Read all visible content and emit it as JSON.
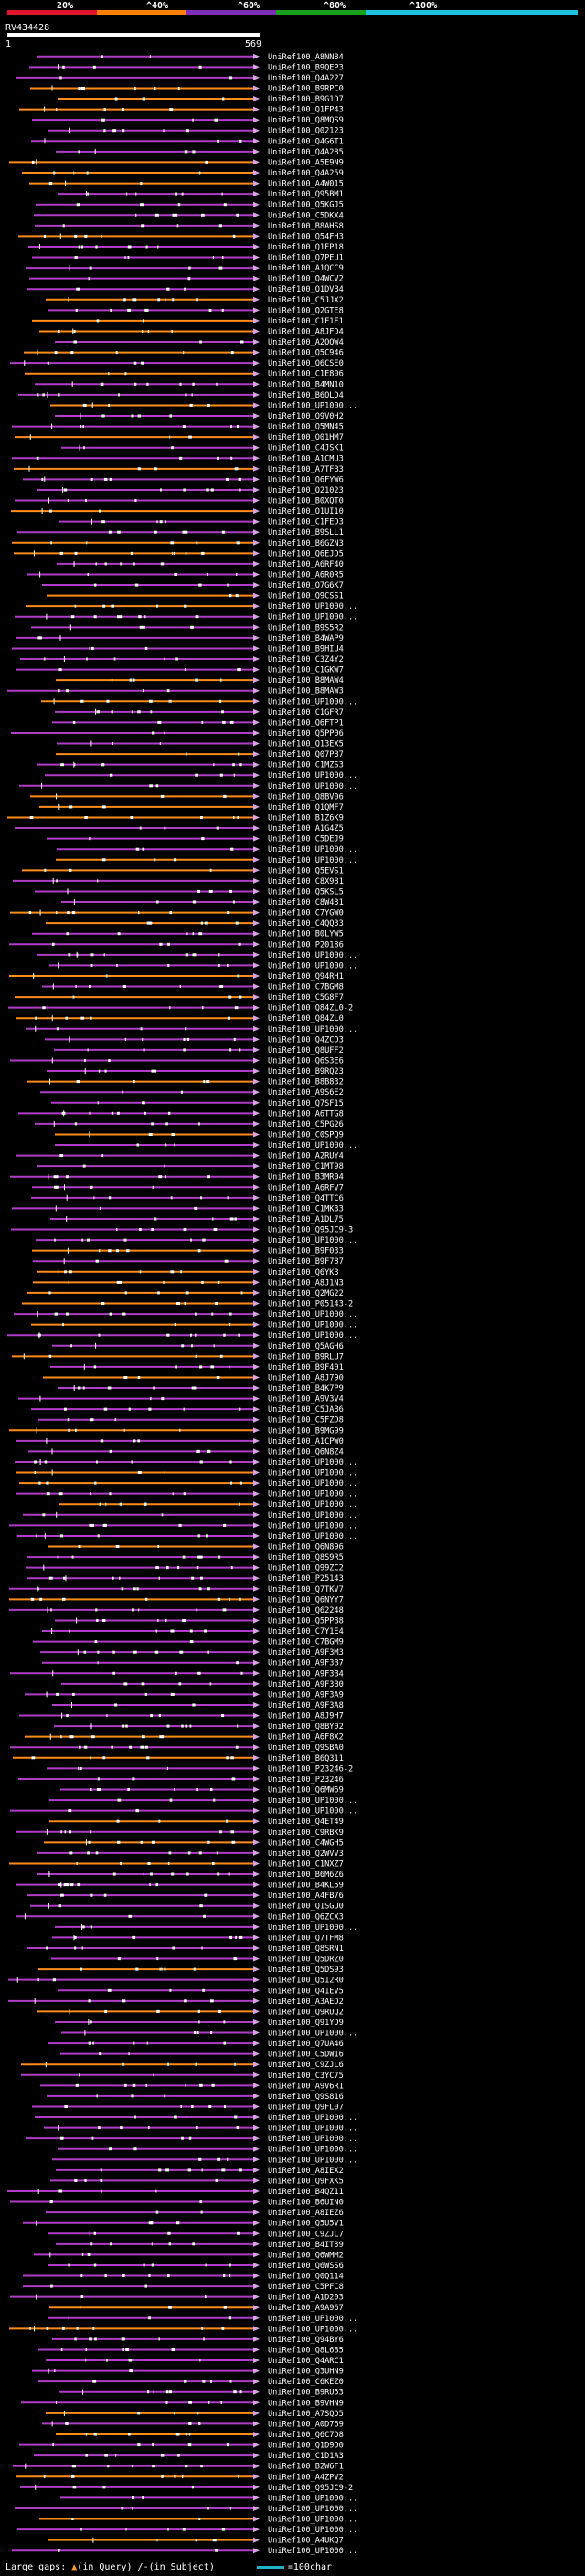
{
  "colors": {
    "bg": "#000000",
    "scale": [
      "#e0142c",
      "#ff7f00",
      "#7a2fb5",
      "#18a01b",
      "#1fc2de"
    ],
    "hit_low": "#b03cc8",
    "hit_high": "#ff8c1a",
    "frag": "#ffffff",
    "arrow": "#d9a2e6"
  },
  "chart_data": {
    "type": "alignment-overview",
    "title": "",
    "query": {
      "name": "RV434428",
      "start": "1",
      "end": "569",
      "length": 569
    },
    "scale_ticks": [
      "20%",
      "^40%",
      "^60%",
      "^80%",
      "^100%"
    ],
    "legend": {
      "gaps_label": "Large gaps:",
      "query_gap": "(in Query)",
      "subject_gap": "/-(in Subject)",
      "scale_label": "=100char"
    },
    "subjects": [
      "UniRef100_A8NN84",
      "UniRef100_B9QEP3",
      "UniRef100_Q4A227",
      "UniRef100_B9RPC0",
      "UniRef100_B9G1D7",
      "UniRef100_Q1FP43",
      "UniRef100_Q8MQS9",
      "UniRef100_Q02123",
      "UniRef100_Q4G6T1",
      "UniRef100_Q4A285",
      "UniRef100_A5E9N9",
      "UniRef100_Q4A259",
      "UniRef100_A4W015",
      "UniRef100_Q95BM1",
      "UniRef100_Q5KGJ5",
      "UniRef100_C5DKX4",
      "UniRef100_B8AHS8",
      "UniRef100_Q54FH3",
      "UniRef100_Q1EP18",
      "UniRef100_Q7PEU1",
      "UniRef100_A1QCC9",
      "UniRef100_Q4WCV2",
      "UniRef100_Q1DVB4",
      "UniRef100_C5JJX2",
      "UniRef100_Q2GTE8",
      "UniRef100_C1F1F1",
      "UniRef100_A8JFD4",
      "UniRef100_A2QQW4",
      "UniRef100_Q5C946",
      "UniRef100_Q6CSE0",
      "UniRef100_C1E806",
      "UniRef100_B4MN10",
      "UniRef100_B6QLD4",
      "UniRef100_UP1000...",
      "UniRef100_Q9V0H2",
      "UniRef100_Q5MN45",
      "UniRef100_Q01HM7",
      "UniRef100_C4JSK1",
      "UniRef100_A1CMU3",
      "UniRef100_A7TFB3",
      "UniRef100_Q6FYW6",
      "UniRef100_Q21023",
      "UniRef100_B0XQT0",
      "UniRef100_Q1UI10",
      "UniRef100_C1FED3",
      "UniRef100_B9SLL1",
      "UniRef100_B6GZN3",
      "UniRef100_Q6EJD5",
      "UniRef100_A6RF40",
      "UniRef100_A6R0R5",
      "UniRef100_Q7G6K7",
      "UniRef100_Q9CSS1",
      "UniRef100_UP1000...",
      "UniRef100_UP1000...",
      "UniRef100_B9S5R2",
      "UniRef100_B4WAP9",
      "UniRef100_B9HIU4",
      "UniRef100_C3Z4Y2",
      "UniRef100_C1GKW7",
      "UniRef100_B8MAW4",
      "UniRef100_B8MAW3",
      "UniRef100_UP1000...",
      "UniRef100_C1GFR7",
      "UniRef100_Q6FTP1",
      "UniRef100_Q5PP06",
      "UniRef100_Q13EX5",
      "UniRef100_Q07PB7",
      "UniRef100_C1MZS3",
      "UniRef100_UP1000...",
      "UniRef100_UP1000...",
      "UniRef100_Q8BV06",
      "UniRef100_Q1QMF7",
      "UniRef100_B1Z6K9",
      "UniRef100_A1G4Z5",
      "UniRef100_C5DEJ9",
      "UniRef100_UP1000...",
      "UniRef100_UP1000...",
      "UniRef100_Q5EVS1",
      "UniRef100_C8X981",
      "UniRef100_Q5KSL5",
      "UniRef100_C8W431",
      "UniRef100_C7YGW0",
      "UniRef100_C4QQ33",
      "UniRef100_B0LYW5",
      "UniRef100_P20186",
      "UniRef100_UP1000...",
      "UniRef100_UP1000...",
      "UniRef100_Q94RH1",
      "UniRef100_C7BGM8",
      "UniRef100_C5G8F7",
      "UniRef100_Q84ZL0-2",
      "UniRef100_Q84ZL0",
      "UniRef100_UP1000...",
      "UniRef100_Q4ZCD3",
      "UniRef100_Q8UFF2",
      "UniRef100_Q6S3E6",
      "UniRef100_B9RQ23",
      "UniRef100_B8B832",
      "UniRef100_A9S6E2",
      "UniRef100_Q7SF15",
      "UniRef100_A6TTG8",
      "UniRef100_C5PG26",
      "UniRef100_C0SPQ9",
      "UniRef100_UP1000...",
      "UniRef100_A2RUY4",
      "UniRef100_C1MT98",
      "UniRef100_B3MR04",
      "UniRef100_A6RFV7",
      "UniRef100_Q4TTC6",
      "UniRef100_C1MK33",
      "UniRef100_A1DL75",
      "UniRef100_Q95JC9-3",
      "UniRef100_UP1000...",
      "UniRef100_B9F033",
      "UniRef100_B9F787",
      "UniRef100_Q6YK3",
      "UniRef100_A8J1N3",
      "UniRef100_Q2MG22",
      "UniRef100_P05143-2",
      "UniRef100_UP1000...",
      "UniRef100_UP1000...",
      "UniRef100_UP1000...",
      "UniRef100_Q5AGH6",
      "UniRef100_B9RLU7",
      "UniRef100_B9F401",
      "UniRef100_A8J790",
      "UniRef100_B4K7P9",
      "UniRef100_A9V3V4",
      "UniRef100_C5JAB6",
      "UniRef100_C5FZD8",
      "UniRef100_B9MG99",
      "UniRef100_A1CPW0",
      "UniRef100_Q6N8Z4",
      "UniRef100_UP1000...",
      "UniRef100_UP1000...",
      "UniRef100_UP1000...",
      "UniRef100_UP1000...",
      "UniRef100_UP1000...",
      "UniRef100_UP1000...",
      "UniRef100_UP1000...",
      "UniRef100_UP1000...",
      "UniRef100_Q6N896",
      "UniRef100_Q8S9R5",
      "UniRef100_Q99ZC2",
      "UniRef100_P25143",
      "UniRef100_Q7TKV7",
      "UniRef100_Q6NYY7",
      "UniRef100_Q62248",
      "UniRef100_Q5PPB8",
      "UniRef100_C7Y1E4",
      "UniRef100_C7BGM9",
      "UniRef100_A9F3M3",
      "UniRef100_A9F3B7",
      "UniRef100_A9F3B4",
      "UniRef100_A9F3B0",
      "UniRef100_A9F3A9",
      "UniRef100_A9F3A8",
      "UniRef100_A8J9H7",
      "UniRef100_Q8BY02",
      "UniRef100_A6F8X2",
      "UniRef100_Q9SBA0",
      "UniRef100_B6Q311",
      "UniRef100_P23246-2",
      "UniRef100_P23246",
      "UniRef100_Q6MW69",
      "UniRef100_UP1000...",
      "UniRef100_UP1000...",
      "UniRef100_Q4ET49",
      "UniRef100_C9RBK9",
      "UniRef100_C4WGH5",
      "UniRef100_Q2WVV3",
      "UniRef100_C1NXZ7",
      "UniRef100_B6M6Z6",
      "UniRef100_B4KL59",
      "UniRef100_A4FB76",
      "UniRef100_Q1SGU0",
      "UniRef100_Q6ZCX3",
      "UniRef100_UP1000...",
      "UniRef100_Q7TFM8",
      "UniRef100_Q8SRN1",
      "UniRef100_Q5DRZ0",
      "UniRef100_Q5DS93",
      "UniRef100_Q512R0",
      "UniRef100_Q41EV5",
      "UniRef100_A3AED2",
      "UniRef100_Q9RUQ2",
      "UniRef100_Q91YD9",
      "UniRef100_UP1000...",
      "UniRef100_Q7UA46",
      "UniRef100_C5DW16",
      "UniRef100_C9ZJL6",
      "UniRef100_C3YC75",
      "UniRef100_A9V6R1",
      "UniRef100_Q9S816",
      "UniRef100_Q9FL07",
      "UniRef100_UP1000...",
      "UniRef100_UP1000...",
      "UniRef100_UP1000...",
      "UniRef100_UP1000...",
      "UniRef100_UP1000...",
      "UniRef100_A8IEX2",
      "UniRef100_Q9FXK5",
      "UniRef100_B4QZ11",
      "UniRef100_B6UIN0",
      "UniRef100_A8IEZ6",
      "UniRef100_Q5U5V1",
      "UniRef100_C9ZJL7",
      "UniRef100_B4IT39",
      "UniRef100_Q6WMM2",
      "UniRef100_Q6WSS6",
      "UniRef100_Q0Q114",
      "UniRef100_C5PFC8",
      "UniRef100_A1D203",
      "UniRef100_A9A967",
      "UniRef100_UP1000...",
      "UniRef100_UP1000...",
      "UniRef100_Q94BY6",
      "UniRef100_Q8L685",
      "UniRef100_Q4ARC1",
      "UniRef100_Q3UHN9",
      "UniRef100_C6KEZ0",
      "UniRef100_B9RU53",
      "UniRef100_B9VHN9",
      "UniRef100_A7SQD5",
      "UniRef100_A0D769",
      "UniRef100_Q6C7D8",
      "UniRef100_Q1D9D0",
      "UniRef100_C1D1A3",
      "UniRef100_B2W6F1",
      "UniRef100_A4ZPV2",
      "UniRef100_Q95JC9-2",
      "UniRef100_UP1000...",
      "UniRef100_UP1000...",
      "UniRef100_UP1000...",
      "UniRef100_UP1000...",
      "UniRef100_A4UKQ7",
      "UniRef100_UP1000..."
    ]
  }
}
